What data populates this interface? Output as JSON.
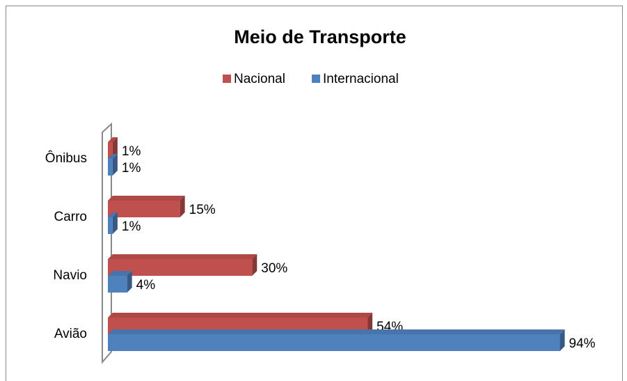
{
  "chart_data": {
    "type": "bar",
    "orientation": "horizontal",
    "title": "Meio de Transporte",
    "categories": [
      "Ônibus",
      "Carro",
      "Navio",
      "Avião"
    ],
    "series": [
      {
        "name": "Nacional",
        "color": "#c0504d",
        "values": [
          1,
          15,
          30,
          54
        ],
        "value_labels": [
          "1%",
          "15%",
          "30%",
          "54%"
        ]
      },
      {
        "name": "Internacional",
        "color": "#4f81bd",
        "values": [
          1,
          1,
          4,
          94
        ],
        "value_labels": [
          "1%",
          "1%",
          "4%",
          "94%"
        ]
      }
    ],
    "xlim": [
      0,
      100
    ],
    "legend": "top"
  }
}
